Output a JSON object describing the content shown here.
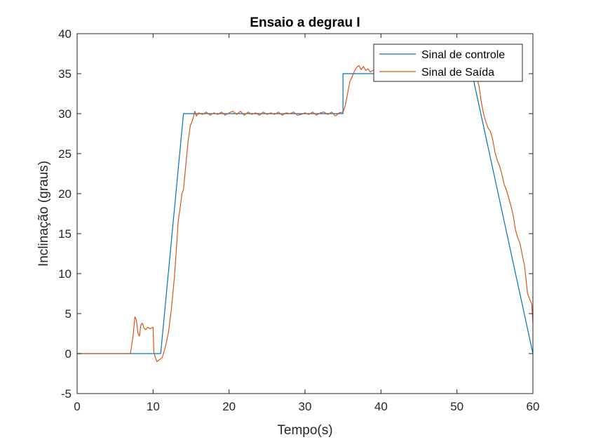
{
  "chart_data": {
    "type": "line",
    "title": "Ensaio a degrau I",
    "xlabel": "Tempo(s)",
    "ylabel": "Inclinação (graus)",
    "xlim": [
      0,
      60
    ],
    "ylim": [
      -5,
      40
    ],
    "xticks": [
      0,
      10,
      20,
      30,
      40,
      50,
      60
    ],
    "yticks": [
      -5,
      0,
      5,
      10,
      15,
      20,
      25,
      30,
      35,
      40
    ],
    "grid": false,
    "legend_position": "top-right",
    "series": [
      {
        "name": "Sinal de controle",
        "color": "#0072BD",
        "points": [
          [
            0,
            0
          ],
          [
            11,
            0
          ],
          [
            14,
            30
          ],
          [
            35,
            30
          ],
          [
            35,
            35
          ],
          [
            52,
            35
          ],
          [
            60,
            0
          ]
        ]
      },
      {
        "name": "Sinal de Saída",
        "color": "#D95319",
        "points": [
          [
            0,
            0
          ],
          [
            7,
            0
          ],
          [
            7.1,
            0.5
          ],
          [
            7.4,
            2.5
          ],
          [
            7.6,
            4.6
          ],
          [
            7.8,
            4.2
          ],
          [
            8.0,
            2.6
          ],
          [
            8.2,
            2.2
          ],
          [
            8.4,
            3.6
          ],
          [
            8.6,
            3.8
          ],
          [
            8.8,
            3.2
          ],
          [
            9.0,
            3.0
          ],
          [
            9.3,
            3.3
          ],
          [
            9.6,
            3.1
          ],
          [
            10.0,
            3.3
          ],
          [
            10.1,
            0.2
          ],
          [
            10.3,
            -0.5
          ],
          [
            10.5,
            -1.0
          ],
          [
            10.8,
            -0.8
          ],
          [
            11.2,
            -0.5
          ],
          [
            11.6,
            0.8
          ],
          [
            12.0,
            2.5
          ],
          [
            12.4,
            5.5
          ],
          [
            12.8,
            9.5
          ],
          [
            13.1,
            13.5
          ],
          [
            13.3,
            16.5
          ],
          [
            13.6,
            18.5
          ],
          [
            13.8,
            20
          ],
          [
            14.0,
            20.5
          ],
          [
            14.3,
            23.5
          ],
          [
            14.6,
            26.5
          ],
          [
            14.9,
            28.5
          ],
          [
            15.2,
            29.2
          ],
          [
            15.5,
            30.3
          ],
          [
            15.7,
            29.7
          ],
          [
            16.0,
            30.1
          ],
          [
            16.5,
            29.9
          ],
          [
            17.0,
            30.2
          ],
          [
            17.5,
            29.8
          ],
          [
            18.0,
            30.1
          ],
          [
            18.5,
            29.9
          ],
          [
            19.0,
            30.2
          ],
          [
            19.5,
            29.8
          ],
          [
            20.0,
            30.1
          ],
          [
            20.5,
            30.3
          ],
          [
            21.0,
            29.9
          ],
          [
            21.5,
            30.3
          ],
          [
            22.0,
            29.8
          ],
          [
            22.5,
            30.2
          ],
          [
            23.0,
            29.9
          ],
          [
            23.5,
            30.1
          ],
          [
            24.0,
            29.8
          ],
          [
            24.5,
            30.2
          ],
          [
            25.0,
            29.9
          ],
          [
            25.5,
            30.1
          ],
          [
            26.0,
            29.9
          ],
          [
            26.5,
            30.2
          ],
          [
            27.0,
            29.8
          ],
          [
            27.5,
            30.1
          ],
          [
            28.0,
            30.0
          ],
          [
            28.5,
            30.2
          ],
          [
            29.0,
            29.8
          ],
          [
            29.5,
            29.9
          ],
          [
            30.0,
            30.1
          ],
          [
            30.5,
            29.9
          ],
          [
            31.0,
            30.2
          ],
          [
            31.5,
            29.8
          ],
          [
            32.0,
            30.1
          ],
          [
            32.5,
            30.2
          ],
          [
            33.0,
            29.9
          ],
          [
            33.5,
            30.2
          ],
          [
            34.0,
            29.7
          ],
          [
            34.5,
            30.1
          ],
          [
            35.0,
            30.2
          ],
          [
            35.3,
            31.0
          ],
          [
            35.6,
            32.5
          ],
          [
            35.9,
            34.0
          ],
          [
            36.2,
            34.6
          ],
          [
            36.5,
            35.3
          ],
          [
            36.8,
            35.8
          ],
          [
            37.1,
            36.0
          ],
          [
            37.4,
            35.5
          ],
          [
            37.7,
            35.9
          ],
          [
            38.0,
            35.4
          ],
          [
            38.3,
            35.6
          ],
          [
            38.6,
            35.2
          ],
          [
            38.9,
            35.4
          ],
          [
            39.2,
            35.5
          ],
          [
            39.5,
            35.2
          ],
          [
            39.8,
            35.4
          ],
          [
            52.0,
            35.2
          ],
          [
            52.2,
            35.0
          ],
          [
            52.6,
            34.5
          ],
          [
            52.9,
            33.5
          ],
          [
            53.2,
            31.5
          ],
          [
            53.5,
            30.0
          ],
          [
            53.8,
            29.0
          ],
          [
            54.1,
            28.2
          ],
          [
            54.4,
            27.8
          ],
          [
            54.7,
            26.8
          ],
          [
            55.0,
            25.2
          ],
          [
            55.3,
            24.2
          ],
          [
            55.6,
            23.5
          ],
          [
            55.9,
            22.5
          ],
          [
            56.2,
            21.2
          ],
          [
            56.5,
            20.5
          ],
          [
            56.8,
            19.5
          ],
          [
            57.1,
            18.5
          ],
          [
            57.4,
            17.3
          ],
          [
            57.7,
            15.5
          ],
          [
            58.0,
            14.5
          ],
          [
            58.3,
            13.8
          ],
          [
            58.6,
            12.3
          ],
          [
            58.9,
            11.0
          ],
          [
            59.1,
            9.2
          ],
          [
            59.3,
            7.5
          ],
          [
            59.5,
            7.0
          ],
          [
            59.7,
            6.5
          ],
          [
            59.85,
            6.2
          ],
          [
            60.0,
            3.8
          ]
        ]
      }
    ]
  }
}
